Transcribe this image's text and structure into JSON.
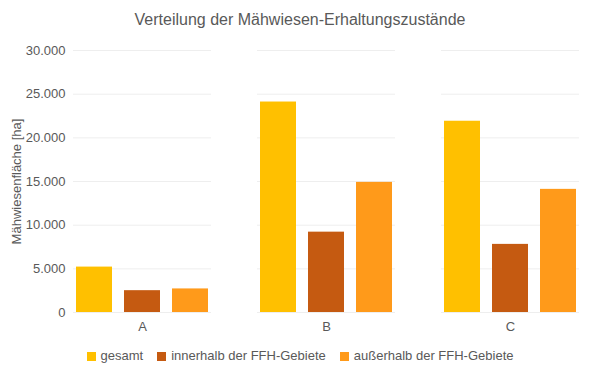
{
  "chart_data": {
    "type": "bar",
    "title": "Verteilung der Mähwiesen-Erhaltungszustände",
    "y_label": "Mähwiesenfläche [ha]",
    "categories": [
      "A",
      "B",
      "C"
    ],
    "series": [
      {
        "name": "gesamt",
        "color": "#ffc000",
        "values": [
          5200,
          24100,
          21900
        ]
      },
      {
        "name": "innerhalb der FFH-Gebiete",
        "color": "#c55a11",
        "values": [
          2500,
          9200,
          7800
        ]
      },
      {
        "name": "außerhalb der FFH-Gebiete",
        "color": "#ff9a1a",
        "values": [
          2700,
          14900,
          14100
        ]
      }
    ],
    "ylim": [
      0,
      30000
    ],
    "yticks": [
      0,
      {
        "value": 5000,
        "label": "5.000"
      },
      {
        "value": 10000,
        "label": "10.000"
      },
      {
        "value": 15000,
        "label": "15.000"
      },
      {
        "value": 20000,
        "label": "20.000"
      },
      {
        "value": 25000,
        "label": "25.000"
      },
      {
        "value": 30000,
        "label": "30.000"
      }
    ],
    "grid": true,
    "legend": "bottom"
  }
}
